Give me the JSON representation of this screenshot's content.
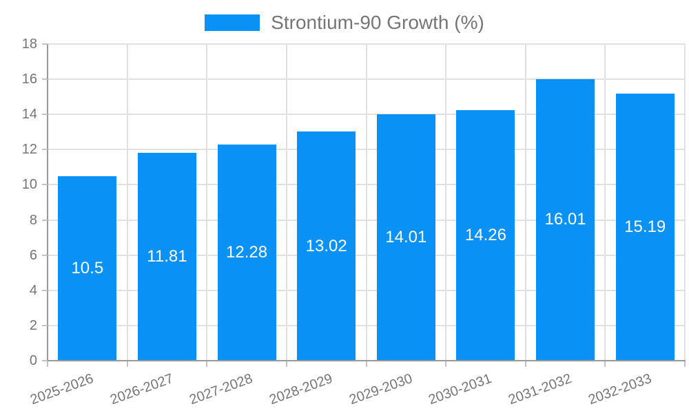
{
  "chart_data": {
    "type": "bar",
    "legend": {
      "label": "Strontium-90 Growth (%)",
      "position": "top-center"
    },
    "categories": [
      "2025-2026",
      "2026-2027",
      "2027-2028",
      "2028-2029",
      "2029-2030",
      "2030-2031",
      "2031-2032",
      "2032-2033"
    ],
    "values": [
      10.5,
      11.81,
      12.28,
      13.02,
      14.01,
      14.26,
      16.01,
      15.19
    ],
    "bar_labels": [
      "10.5",
      "11.81",
      "12.28",
      "13.02",
      "14.01",
      "14.26",
      "16.01",
      "15.19"
    ],
    "xlabel": "",
    "ylabel": "",
    "ylim": [
      0,
      18
    ],
    "yticks": [
      0,
      2,
      4,
      6,
      8,
      10,
      12,
      14,
      16,
      18
    ],
    "grid": true,
    "x_label_rotation_deg": -20,
    "colors": {
      "bar": "#0991f5",
      "grid": "#e0e0e0",
      "axis": "#999999",
      "tick": "#c2c2c2",
      "label_text": "#757575",
      "bar_label_text": "#ffffff"
    }
  }
}
